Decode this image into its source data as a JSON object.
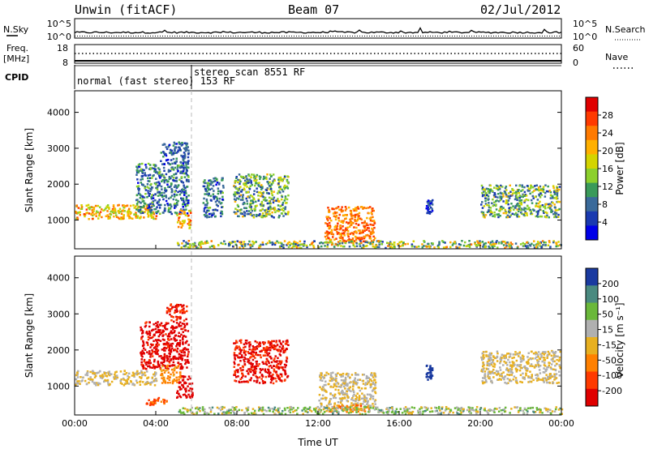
{
  "header": {
    "station": "Unwin (fitACF)",
    "beam": "Beam 07",
    "date": "02/Jul/2012"
  },
  "top_panels": {
    "nsky_label": "N.Sky",
    "nsearch_label": "N.Search",
    "nsky_ticks": [
      "10^5",
      "10^0"
    ],
    "nsearch_ticks": [
      "10^5",
      "10^0"
    ],
    "freq_label_1": "Freq.",
    "freq_label_2": "[MHz]",
    "freq_ticks": [
      "18",
      "8"
    ],
    "nave_label": "Nave",
    "nave_ticks": [
      "60",
      "0"
    ],
    "cpid_label": "CPID",
    "cpid_modes": [
      "normal (fast stereo) 153 RF",
      "stereo_scan 8551 RF"
    ]
  },
  "axes": {
    "ylabel": "Slant Range [km]",
    "yticks": [
      1000,
      2000,
      3000,
      4000
    ],
    "ylim": [
      200,
      4600
    ],
    "xlabel": "Time UT",
    "xticks": [
      "00:00",
      "04:00",
      "08:00",
      "12:00",
      "16:00",
      "20:00",
      "00:00"
    ],
    "xlim_hours": [
      0,
      24
    ]
  },
  "power_colorbar": {
    "label": "Power [dB]",
    "ticks": [
      "28",
      "24",
      "20",
      "16",
      "12",
      "8",
      "4"
    ],
    "colors": [
      "#e00000",
      "#ff3a00",
      "#ff7a00",
      "#ffb000",
      "#d4d400",
      "#8cd02c",
      "#3a9a5a",
      "#3a6a9a",
      "#1a3ab0",
      "#0000e8"
    ]
  },
  "velocity_colorbar": {
    "label": "Velocity [m s⁻¹]",
    "ticks": [
      "200",
      "100",
      "50",
      "15",
      "-15",
      "-50",
      "-100",
      "-200"
    ],
    "colors": [
      "#1a3aa0",
      "#4a8a80",
      "#6ab83a",
      "#b0b0b0",
      "#e8b020",
      "#ff8000",
      "#ff3a00",
      "#e00000"
    ]
  },
  "chart_data": [
    {
      "type": "heatmap",
      "panel": "power",
      "xlabel": "Time UT",
      "ylabel": "Slant Range [km]",
      "colorbar": "Power [dB]",
      "x_units": "hours UT",
      "y_units": "km",
      "regions": [
        {
          "t": [
            0.0,
            4.0
          ],
          "r": [
            1050,
            1450
          ],
          "value": 22,
          "spread": 6
        },
        {
          "t": [
            3.0,
            5.6
          ],
          "r": [
            1200,
            2600
          ],
          "value": 10,
          "spread": 6
        },
        {
          "t": [
            4.2,
            5.6
          ],
          "r": [
            2600,
            3200
          ],
          "value": 8,
          "spread": 4
        },
        {
          "t": [
            5.0,
            5.7
          ],
          "r": [
            800,
            1300
          ],
          "value": 22,
          "spread": 6
        },
        {
          "t": [
            6.3,
            7.3
          ],
          "r": [
            1100,
            2200
          ],
          "value": 10,
          "spread": 6
        },
        {
          "t": [
            7.8,
            10.5
          ],
          "r": [
            1100,
            2300
          ],
          "value": 14,
          "spread": 8
        },
        {
          "t": [
            12.3,
            14.8
          ],
          "r": [
            400,
            1400
          ],
          "value": 26,
          "spread": 4
        },
        {
          "t": [
            17.3,
            17.6
          ],
          "r": [
            1200,
            1600
          ],
          "value": 6,
          "spread": 3
        },
        {
          "t": [
            20.0,
            23.9
          ],
          "r": [
            1100,
            2000
          ],
          "value": 14,
          "spread": 8
        },
        {
          "t": [
            5.0,
            24.0
          ],
          "r": [
            250,
            450
          ],
          "value": 16,
          "spread": 10
        }
      ]
    },
    {
      "type": "heatmap",
      "panel": "velocity",
      "xlabel": "Time UT",
      "ylabel": "Slant Range [km]",
      "colorbar": "Velocity [m s⁻¹]",
      "x_units": "hours UT",
      "y_units": "km",
      "regions": [
        {
          "t": [
            0.0,
            4.0
          ],
          "r": [
            1050,
            1450
          ],
          "value": 0,
          "spread": 8
        },
        {
          "t": [
            3.2,
            5.6
          ],
          "r": [
            1500,
            2800
          ],
          "value": -180,
          "spread": 40
        },
        {
          "t": [
            4.5,
            5.5
          ],
          "r": [
            2800,
            3300
          ],
          "value": -150,
          "spread": 40
        },
        {
          "t": [
            4.2,
            5.2
          ],
          "r": [
            1100,
            1600
          ],
          "value": -40,
          "spread": 20
        },
        {
          "t": [
            5.0,
            5.8
          ],
          "r": [
            700,
            1300
          ],
          "value": -190,
          "spread": 20
        },
        {
          "t": [
            3.5,
            4.5
          ],
          "r": [
            500,
            700
          ],
          "value": -80,
          "spread": 20
        },
        {
          "t": [
            7.8,
            10.5
          ],
          "r": [
            1100,
            2300
          ],
          "value": -170,
          "spread": 50
        },
        {
          "t": [
            12.0,
            14.8
          ],
          "r": [
            400,
            1400
          ],
          "value": 0,
          "spread": 10
        },
        {
          "t": [
            12.5,
            14.5
          ],
          "r": [
            300,
            500
          ],
          "value": -60,
          "spread": 20
        },
        {
          "t": [
            17.3,
            17.6
          ],
          "r": [
            1200,
            1600
          ],
          "value": 200,
          "spread": 20
        },
        {
          "t": [
            20.0,
            23.9
          ],
          "r": [
            1100,
            2000
          ],
          "value": 0,
          "spread": 8
        },
        {
          "t": [
            5.0,
            24.0
          ],
          "r": [
            250,
            450
          ],
          "value": 30,
          "spread": 60
        }
      ]
    }
  ]
}
